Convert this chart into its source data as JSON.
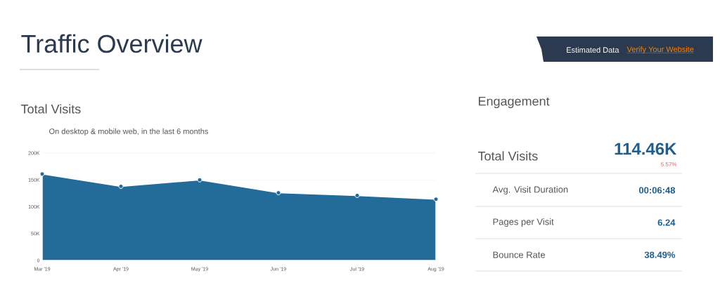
{
  "chart_data": [
    {
      "type": "area",
      "title": "Total Visits",
      "subtitle": "On desktop & mobile web, in the last 6 months",
      "categories": [
        "Mar '19",
        "Apr '19",
        "May '19",
        "Jun '19",
        "Jul '19",
        "Aug '19"
      ],
      "values": [
        161000,
        138000,
        150000,
        126000,
        121000,
        114000
      ],
      "color": "#236b98",
      "marker": "circle",
      "ylim": [
        0,
        200000
      ],
      "yticks": [
        0,
        {
          "value": 50000,
          "label": "50K"
        },
        {
          "value": 100000,
          "label": "100K"
        },
        {
          "value": 150000,
          "label": "150K"
        },
        {
          "value": 200000,
          "label": "200K"
        }
      ],
      "grid": "y",
      "annotations": [
        "Traffic Overview",
        "Estimated Data",
        "Verify Your Website"
      ]
    },
    {
      "type": "other",
      "title": "Engagement",
      "annotations": [
        "Total Visits",
        "114.46K",
        "5.57%",
        "Avg. Visit Duration",
        "00:06:48",
        "Pages per Visit",
        "6.24",
        "Bounce Rate",
        "38.49%"
      ]
    }
  ]
}
